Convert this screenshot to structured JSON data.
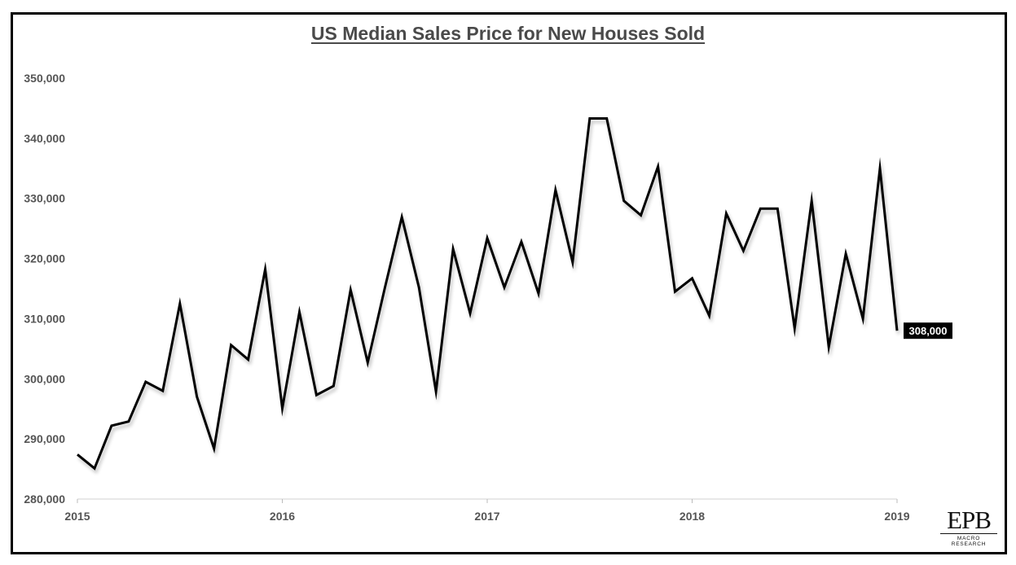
{
  "chart_data": {
    "type": "line",
    "title": "US Median Sales Price for New Houses Sold",
    "xlabel": "",
    "ylabel": "",
    "ylim": [
      280000,
      355000
    ],
    "y_ticks": [
      280000,
      290000,
      300000,
      310000,
      320000,
      330000,
      340000,
      350000
    ],
    "y_tick_labels": [
      "280,000",
      "290,000",
      "300,000",
      "310,000",
      "320,000",
      "330,000",
      "340,000",
      "350,000"
    ],
    "x_tick_labels": [
      "2015",
      "2016",
      "2017",
      "2018",
      "2019"
    ],
    "x_start_year": 2015,
    "x_end_year": 2019,
    "series": [
      {
        "name": "Median Sales Price",
        "color": "#000000",
        "values": [
          287400,
          285100,
          292200,
          292900,
          299500,
          298000,
          312500,
          297000,
          288400,
          305600,
          303200,
          318200,
          295100,
          311100,
          297300,
          298800,
          314800,
          302700,
          315100,
          326900,
          315200,
          297900,
          321600,
          310900,
          323400,
          315200,
          322800,
          314200,
          331400,
          319400,
          343300,
          343300,
          329600,
          327200,
          335300,
          314500,
          316700,
          310500,
          327500,
          321300,
          328300,
          328300,
          308400,
          329600,
          305300,
          320800,
          310000,
          335000,
          308000
        ]
      }
    ],
    "last_value_label": "308,000"
  },
  "logo": {
    "main": "EPB",
    "sub": "MACRO RESEARCH"
  }
}
